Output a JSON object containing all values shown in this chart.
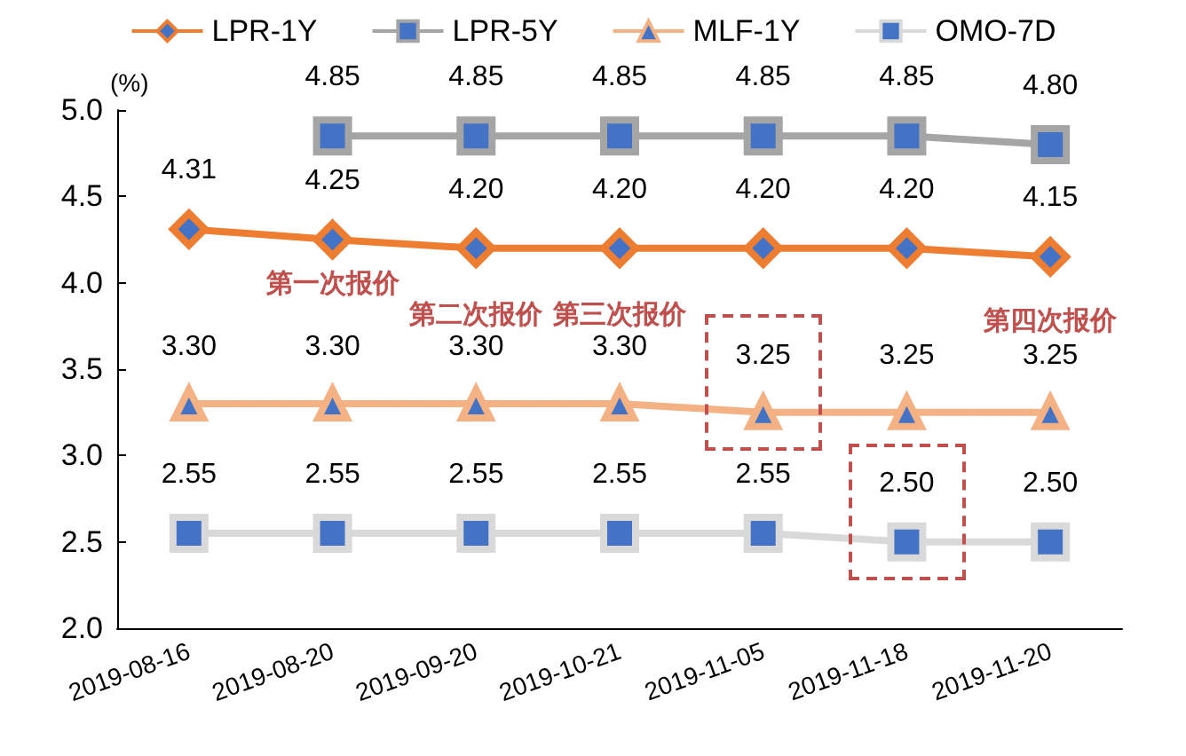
{
  "chart_data": {
    "type": "line",
    "ylabel": "(%)",
    "categories": [
      "2019-08-16",
      "2019-08-20",
      "2019-09-20",
      "2019-10-21",
      "2019-11-05",
      "2019-11-18",
      "2019-11-20"
    ],
    "series": [
      {
        "name": "LPR-1Y",
        "color": "#ed7d31",
        "marker": "diamond",
        "values": [
          4.31,
          4.25,
          4.2,
          4.2,
          4.2,
          4.2,
          4.15
        ],
        "value_labels": [
          "4.31",
          "4.25",
          "4.20",
          "4.20",
          "4.20",
          "4.20",
          "4.15"
        ]
      },
      {
        "name": "LPR-5Y",
        "color": "#a5a5a5",
        "marker": "square",
        "values": [
          null,
          4.85,
          4.85,
          4.85,
          4.85,
          4.85,
          4.8
        ],
        "value_labels": [
          null,
          "4.85",
          "4.85",
          "4.85",
          "4.85",
          "4.85",
          "4.80"
        ]
      },
      {
        "name": "MLF-1Y",
        "color": "#f4b183",
        "marker": "triangle",
        "values": [
          3.3,
          3.3,
          3.3,
          3.3,
          3.25,
          3.25,
          3.25
        ],
        "value_labels": [
          "3.30",
          "3.30",
          "3.30",
          "3.30",
          "3.25",
          "3.25",
          "3.25"
        ]
      },
      {
        "name": "OMO-7D",
        "color": "#d9d9d9",
        "marker": "square",
        "values": [
          2.55,
          2.55,
          2.55,
          2.55,
          2.55,
          2.5,
          2.5
        ],
        "value_labels": [
          "2.55",
          "2.55",
          "2.55",
          "2.55",
          "2.55",
          "2.50",
          "2.50"
        ]
      }
    ],
    "ylim": [
      2.0,
      5.0
    ],
    "yticks": [
      {
        "value": 2,
        "label": "2.0"
      },
      {
        "value": 2.5,
        "label": "2.5"
      },
      {
        "value": 3,
        "label": "3.0"
      },
      {
        "value": 3.5,
        "label": "3.5"
      },
      {
        "value": 4,
        "label": "4.0"
      },
      {
        "value": 4.5,
        "label": "4.5"
      },
      {
        "value": 5,
        "label": "5.0"
      }
    ],
    "annotations": [
      "第一次报价",
      "第二次报价",
      "第三次报价",
      "第四次报价"
    ],
    "grid": false,
    "legend": "top",
    "line_style": "solid"
  }
}
